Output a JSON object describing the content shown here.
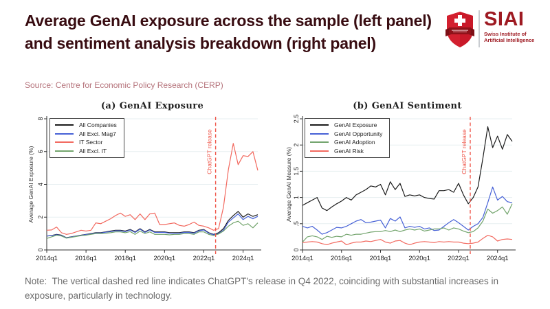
{
  "header": {
    "title": "Average GenAI exposure across the sample (left panel) and sentiment analysis breakdown (right panel)",
    "source": "Source: Centre for Economic Policy Research (CERP)",
    "title_color": "#380c11",
    "source_color": "#b5737b"
  },
  "logo": {
    "acronym": "SIAI",
    "subtitle_line1": "Swiss Institute of",
    "subtitle_line2": "Artificial Intelligence",
    "text_color": "#9e1a22",
    "shield_color": "#d3202f",
    "banner_color": "#8f1219",
    "cross_color": "#ffffff"
  },
  "note": {
    "text": "Note:  The vertical dashed red line indicates ChatGPT's release in Q4 2022, coinciding with substantial increases in exposure, particularly in technology.",
    "color": "#6b6b6b"
  },
  "style": {
    "grid_color": "#e7eff1",
    "axis_color": "#303030",
    "tick_text_color": "#1a1a1a",
    "axis_label_color": "#333333"
  },
  "chart_data": [
    {
      "type": "line",
      "title": "(a) GenAI Exposure",
      "ylabel": "Average GenAI Exposure (%)",
      "ylim": [
        0,
        8
      ],
      "yticks": [
        0,
        2,
        4,
        6,
        8
      ],
      "ytick_labels": [
        "0",
        "2",
        "4",
        "6",
        "8"
      ],
      "xtick_labels": [
        "2014q1",
        "2016q1",
        "2018q1",
        "2020q1",
        "2022q1",
        "2024q1"
      ],
      "xtick_indices": [
        0,
        8,
        16,
        24,
        32,
        40
      ],
      "grid": true,
      "legend_position": "top-left",
      "annotation": {
        "label": "ChatGPT release",
        "index": 34.4,
        "color": "#ef584c",
        "style": "dashed"
      },
      "categories": [
        "2014q1",
        "2014q2",
        "2014q3",
        "2014q4",
        "2015q1",
        "2015q2",
        "2015q3",
        "2015q4",
        "2016q1",
        "2016q2",
        "2016q3",
        "2016q4",
        "2017q1",
        "2017q2",
        "2017q3",
        "2017q4",
        "2018q1",
        "2018q2",
        "2018q3",
        "2018q4",
        "2019q1",
        "2019q2",
        "2019q3",
        "2019q4",
        "2020q1",
        "2020q2",
        "2020q3",
        "2020q4",
        "2021q1",
        "2021q2",
        "2021q3",
        "2021q4",
        "2022q1",
        "2022q2",
        "2022q3",
        "2022q4",
        "2023q1",
        "2023q2",
        "2023q3",
        "2023q4",
        "2024q1",
        "2024q2",
        "2024q3",
        "2024q4"
      ],
      "series": [
        {
          "name": "All Companies",
          "color": "#1a1a1a",
          "values": [
            0.85,
            0.88,
            0.95,
            0.9,
            0.75,
            0.8,
            0.85,
            0.9,
            0.95,
            1.0,
            1.05,
            1.05,
            1.1,
            1.15,
            1.2,
            1.2,
            1.15,
            1.25,
            1.1,
            1.3,
            1.1,
            1.25,
            1.1,
            1.1,
            1.1,
            1.05,
            1.05,
            1.05,
            1.1,
            1.1,
            1.05,
            1.2,
            1.25,
            1.05,
            0.95,
            1.05,
            1.3,
            1.8,
            2.1,
            2.35,
            2.0,
            2.2,
            2.05,
            2.15
          ]
        },
        {
          "name": "All Excl. Mag7",
          "color": "#4560d6",
          "values": [
            0.85,
            0.87,
            0.93,
            0.88,
            0.74,
            0.79,
            0.84,
            0.89,
            0.94,
            0.98,
            1.03,
            1.03,
            1.08,
            1.12,
            1.17,
            1.17,
            1.12,
            1.22,
            1.07,
            1.27,
            1.07,
            1.22,
            1.07,
            1.07,
            1.07,
            1.02,
            1.02,
            1.02,
            1.07,
            1.07,
            1.02,
            1.17,
            1.22,
            1.02,
            0.92,
            1.0,
            1.2,
            1.7,
            1.95,
            2.2,
            1.85,
            2.05,
            1.9,
            2.05
          ]
        },
        {
          "name": "IT Sector",
          "color": "#f2685e",
          "values": [
            1.2,
            1.22,
            1.4,
            1.05,
            0.95,
            1.0,
            1.1,
            1.2,
            1.15,
            1.2,
            1.65,
            1.6,
            1.75,
            1.9,
            2.1,
            2.25,
            2.05,
            2.15,
            1.85,
            2.2,
            1.85,
            2.2,
            2.25,
            1.55,
            1.55,
            1.6,
            1.65,
            1.5,
            1.45,
            1.55,
            1.7,
            1.5,
            1.45,
            1.35,
            1.2,
            1.3,
            2.6,
            4.9,
            6.5,
            5.2,
            5.75,
            5.7,
            6.0,
            4.85
          ]
        },
        {
          "name": "All Excl. IT",
          "color": "#72a46c",
          "values": [
            0.7,
            0.8,
            0.9,
            0.85,
            0.72,
            0.77,
            0.82,
            0.87,
            0.9,
            0.95,
            1.0,
            1.0,
            1.02,
            1.05,
            1.1,
            1.1,
            1.05,
            1.12,
            0.95,
            1.15,
            1.0,
            1.1,
            0.95,
            0.95,
            0.95,
            0.92,
            0.95,
            0.95,
            1.0,
            1.0,
            0.95,
            1.1,
            1.1,
            0.95,
            0.88,
            0.97,
            1.15,
            1.45,
            1.65,
            1.75,
            1.5,
            1.6,
            1.35,
            1.65
          ]
        }
      ]
    },
    {
      "type": "line",
      "title": "(b) GenAI Sentiment",
      "ylabel": "Average GenAI Measure (%)",
      "ylim": [
        0,
        2.5
      ],
      "yticks": [
        0,
        0.5,
        1,
        1.5,
        2,
        2.5
      ],
      "ytick_labels": [
        "0",
        ".5",
        "1",
        "1.5",
        "2",
        "2.5"
      ],
      "xtick_labels": [
        "2014q1",
        "2016q1",
        "2018q1",
        "2020q1",
        "2022q1",
        "2024q1"
      ],
      "xtick_indices": [
        0,
        8,
        16,
        24,
        32,
        40
      ],
      "grid": true,
      "legend_position": "top-left",
      "annotation": {
        "label": "ChatGPT release",
        "index": 34.4,
        "color": "#ef584c",
        "style": "dashed"
      },
      "categories": [
        "2014q1",
        "2014q2",
        "2014q3",
        "2014q4",
        "2015q1",
        "2015q2",
        "2015q3",
        "2015q4",
        "2016q1",
        "2016q2",
        "2016q3",
        "2016q4",
        "2017q1",
        "2017q2",
        "2017q3",
        "2017q4",
        "2018q1",
        "2018q2",
        "2018q3",
        "2018q4",
        "2019q1",
        "2019q2",
        "2019q3",
        "2019q4",
        "2020q1",
        "2020q2",
        "2020q3",
        "2020q4",
        "2021q1",
        "2021q2",
        "2021q3",
        "2021q4",
        "2022q1",
        "2022q2",
        "2022q3",
        "2022q4",
        "2023q1",
        "2023q2",
        "2023q3",
        "2023q4",
        "2024q1",
        "2024q2",
        "2024q3",
        "2024q4"
      ],
      "series": [
        {
          "name": "GenAI Exposure",
          "color": "#1a1a1a",
          "values": [
            0.85,
            0.9,
            0.95,
            1.0,
            0.8,
            0.75,
            0.82,
            0.88,
            0.93,
            1.0,
            0.95,
            1.05,
            1.1,
            1.15,
            1.22,
            1.2,
            1.25,
            1.05,
            1.3,
            1.15,
            1.27,
            1.02,
            1.05,
            1.03,
            1.05,
            1.0,
            0.98,
            0.97,
            1.13,
            1.13,
            1.15,
            1.1,
            1.27,
            1.05,
            0.88,
            1.0,
            1.2,
            1.75,
            2.35,
            1.95,
            2.17,
            1.92,
            2.2,
            2.07
          ]
        },
        {
          "name": "GenAI Opportunity",
          "color": "#4560d6",
          "values": [
            0.45,
            0.42,
            0.45,
            0.38,
            0.3,
            0.33,
            0.38,
            0.43,
            0.42,
            0.45,
            0.5,
            0.55,
            0.58,
            0.52,
            0.53,
            0.55,
            0.57,
            0.42,
            0.6,
            0.55,
            0.63,
            0.42,
            0.45,
            0.43,
            0.45,
            0.4,
            0.42,
            0.37,
            0.38,
            0.45,
            0.52,
            0.58,
            0.52,
            0.45,
            0.38,
            0.45,
            0.5,
            0.62,
            0.9,
            1.2,
            0.95,
            1.02,
            0.92,
            0.9
          ]
        },
        {
          "name": "GenAI Adoption",
          "color": "#72a46c",
          "values": [
            0.15,
            0.25,
            0.27,
            0.25,
            0.2,
            0.26,
            0.24,
            0.26,
            0.25,
            0.3,
            0.28,
            0.3,
            0.3,
            0.32,
            0.34,
            0.35,
            0.35,
            0.37,
            0.35,
            0.38,
            0.35,
            0.38,
            0.4,
            0.38,
            0.4,
            0.36,
            0.38,
            0.4,
            0.4,
            0.42,
            0.38,
            0.42,
            0.4,
            0.36,
            0.33,
            0.35,
            0.42,
            0.55,
            0.78,
            0.7,
            0.75,
            0.82,
            0.68,
            0.88
          ]
        },
        {
          "name": "GenAI Risk",
          "color": "#f2685e",
          "values": [
            0.14,
            0.15,
            0.16,
            0.15,
            0.12,
            0.1,
            0.13,
            0.15,
            0.17,
            0.1,
            0.13,
            0.15,
            0.15,
            0.17,
            0.16,
            0.18,
            0.2,
            0.15,
            0.13,
            0.17,
            0.18,
            0.13,
            0.1,
            0.13,
            0.15,
            0.16,
            0.15,
            0.14,
            0.16,
            0.15,
            0.16,
            0.15,
            0.15,
            0.13,
            0.12,
            0.13,
            0.15,
            0.22,
            0.28,
            0.25,
            0.17,
            0.2,
            0.21,
            0.2
          ]
        }
      ]
    }
  ]
}
